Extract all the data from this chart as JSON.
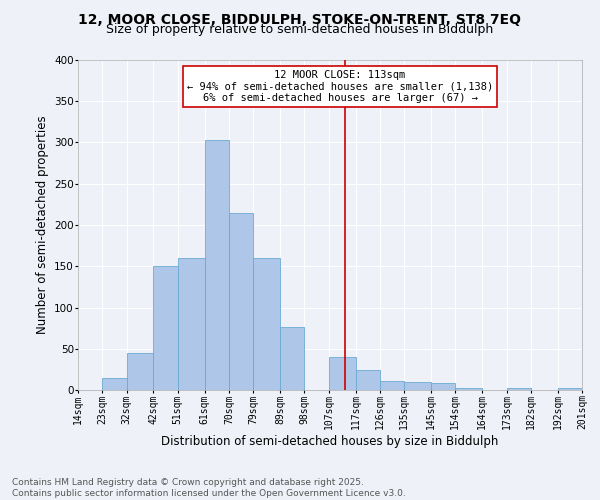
{
  "title_line1": "12, MOOR CLOSE, BIDDULPH, STOKE-ON-TRENT, ST8 7EQ",
  "title_line2": "Size of property relative to semi-detached houses in Biddulph",
  "xlabel": "Distribution of semi-detached houses by size in Biddulph",
  "ylabel": "Number of semi-detached properties",
  "bar_color": "#aec6e8",
  "bar_edge_color": "#6aaad4",
  "background_color": "#eef2f8",
  "grid_color": "#ffffff",
  "vline_color": "#cc0000",
  "vline_x": 113,
  "annotation_title": "12 MOOR CLOSE: 113sqm",
  "annotation_line2": "← 94% of semi-detached houses are smaller (1,138)",
  "annotation_line3": "6% of semi-detached houses are larger (67) →",
  "bin_edges": [
    14,
    23,
    32,
    42,
    51,
    61,
    70,
    79,
    89,
    98,
    107,
    117,
    126,
    135,
    145,
    154,
    164,
    173,
    182,
    192,
    201
  ],
  "bar_heights": [
    0,
    15,
    45,
    150,
    160,
    303,
    215,
    160,
    76,
    0,
    40,
    24,
    11,
    10,
    8,
    3,
    0,
    2,
    0,
    2
  ],
  "tick_labels": [
    "14sqm",
    "23sqm",
    "32sqm",
    "42sqm",
    "51sqm",
    "61sqm",
    "70sqm",
    "79sqm",
    "89sqm",
    "98sqm",
    "107sqm",
    "117sqm",
    "126sqm",
    "135sqm",
    "145sqm",
    "154sqm",
    "164sqm",
    "173sqm",
    "182sqm",
    "192sqm",
    "201sqm"
  ],
  "ylim": [
    0,
    400
  ],
  "yticks": [
    0,
    50,
    100,
    150,
    200,
    250,
    300,
    350,
    400
  ],
  "footer": "Contains HM Land Registry data © Crown copyright and database right 2025.\nContains public sector information licensed under the Open Government Licence v3.0.",
  "title_fontsize": 10,
  "subtitle_fontsize": 9,
  "axis_label_fontsize": 8.5,
  "tick_fontsize": 7,
  "annotation_fontsize": 7.5,
  "footer_fontsize": 6.5
}
